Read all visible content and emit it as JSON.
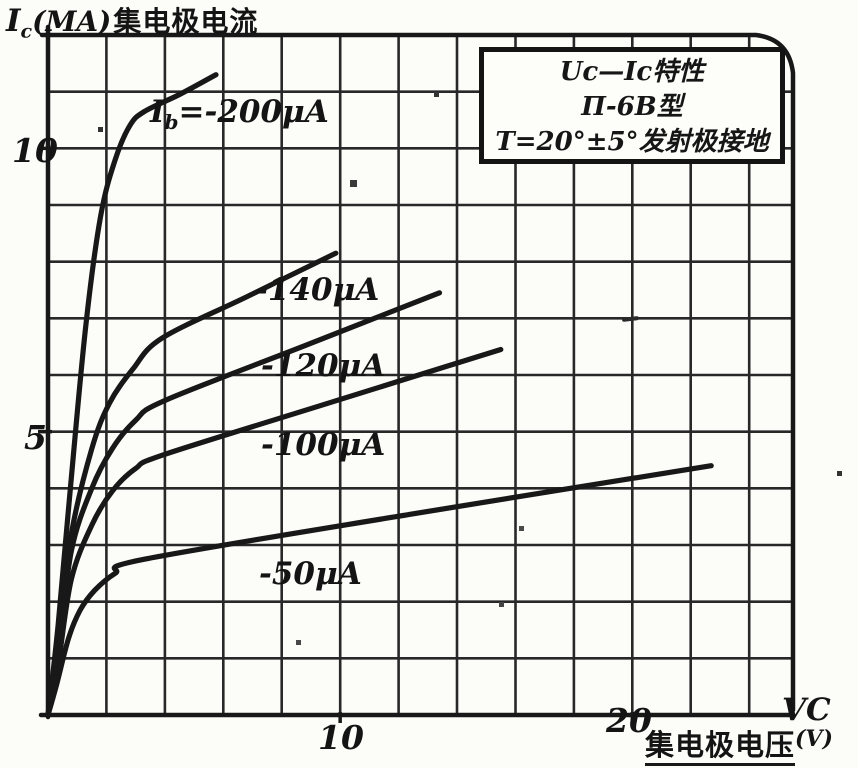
{
  "ink_color": "#181818",
  "background_color": "#fcfcf9",
  "axis_labels": {
    "y_symbol": "I",
    "y_sub": "c",
    "y_unit": "(MA)",
    "y_cn": "集电极电流",
    "x_symbol": "VC",
    "x_cn": "集电极电压",
    "x_unit": "(V)"
  },
  "title_box": {
    "line1": "Uc—Ic特性",
    "line2": "П-6B型",
    "line3": "T=20°±5°发射极接地"
  },
  "chart_data": {
    "type": "line",
    "title": "Uc—Ic特性 П-6B型 T=20°±5° 发射极接地",
    "xlabel": "VC 集电极电压(V)",
    "ylabel": "Ic(MA) 集电极电流",
    "xlim": [
      0,
      25.5
    ],
    "ylim": [
      0,
      12
    ],
    "grid": "on",
    "x_grid_step": 2,
    "y_grid_step": 1,
    "legend_position": "top-right box",
    "x_tick_labels": [
      {
        "value": 10,
        "text": "10"
      },
      {
        "value": 20,
        "text": "20"
      }
    ],
    "y_tick_labels": [
      {
        "value": 10,
        "text": "10"
      },
      {
        "value": 5,
        "text": "5"
      }
    ],
    "series": [
      {
        "id": "ib-200ua",
        "name": "Ib = -200μA",
        "label_sym": "I",
        "label_sub": "b",
        "label_rest": "=-200μA",
        "points": [
          [
            0,
            0
          ],
          [
            0.35,
            1.6
          ],
          [
            0.8,
            4.2
          ],
          [
            1.3,
            6.9
          ],
          [
            1.8,
            8.8
          ],
          [
            2.3,
            9.8
          ],
          [
            2.8,
            10.4
          ],
          [
            3.3,
            10.65
          ],
          [
            4.5,
            10.95
          ],
          [
            5.75,
            11.3
          ]
        ]
      },
      {
        "id": "ib-140ua",
        "name": "-140μA",
        "label_rest": "-140μA",
        "points": [
          [
            0,
            0
          ],
          [
            0.35,
            1.3
          ],
          [
            0.8,
            3.2
          ],
          [
            1.5,
            4.7
          ],
          [
            2.1,
            5.5
          ],
          [
            2.9,
            6.1
          ],
          [
            3.9,
            6.65
          ],
          [
            6.8,
            7.38
          ],
          [
            9.85,
            8.15
          ]
        ]
      },
      {
        "id": "ib-120ua",
        "name": "-120μA",
        "label_rest": "-120μA",
        "points": [
          [
            0,
            0
          ],
          [
            0.35,
            1.1
          ],
          [
            0.8,
            2.9
          ],
          [
            1.5,
            4.0
          ],
          [
            2.2,
            4.7
          ],
          [
            3.0,
            5.2
          ],
          [
            4.0,
            5.55
          ],
          [
            8.7,
            6.5
          ],
          [
            13.4,
            7.45
          ]
        ]
      },
      {
        "id": "ib-100ua",
        "name": "-100μA",
        "label_rest": "-100μA",
        "points": [
          [
            0,
            0
          ],
          [
            0.35,
            0.9
          ],
          [
            0.8,
            2.4
          ],
          [
            1.5,
            3.35
          ],
          [
            2.2,
            3.95
          ],
          [
            3.0,
            4.35
          ],
          [
            4.0,
            4.6
          ],
          [
            9.7,
            5.52
          ],
          [
            15.5,
            6.45
          ]
        ]
      },
      {
        "id": "ib-50ua",
        "name": "-50μA",
        "label_rest": "-50μA",
        "points": [
          [
            0,
            0
          ],
          [
            0.3,
            0.55
          ],
          [
            0.7,
            1.35
          ],
          [
            1.1,
            1.85
          ],
          [
            1.6,
            2.2
          ],
          [
            2.3,
            2.5
          ],
          [
            3.3,
            2.75
          ],
          [
            12.5,
            3.55
          ],
          [
            22.7,
            4.4
          ]
        ]
      }
    ]
  }
}
